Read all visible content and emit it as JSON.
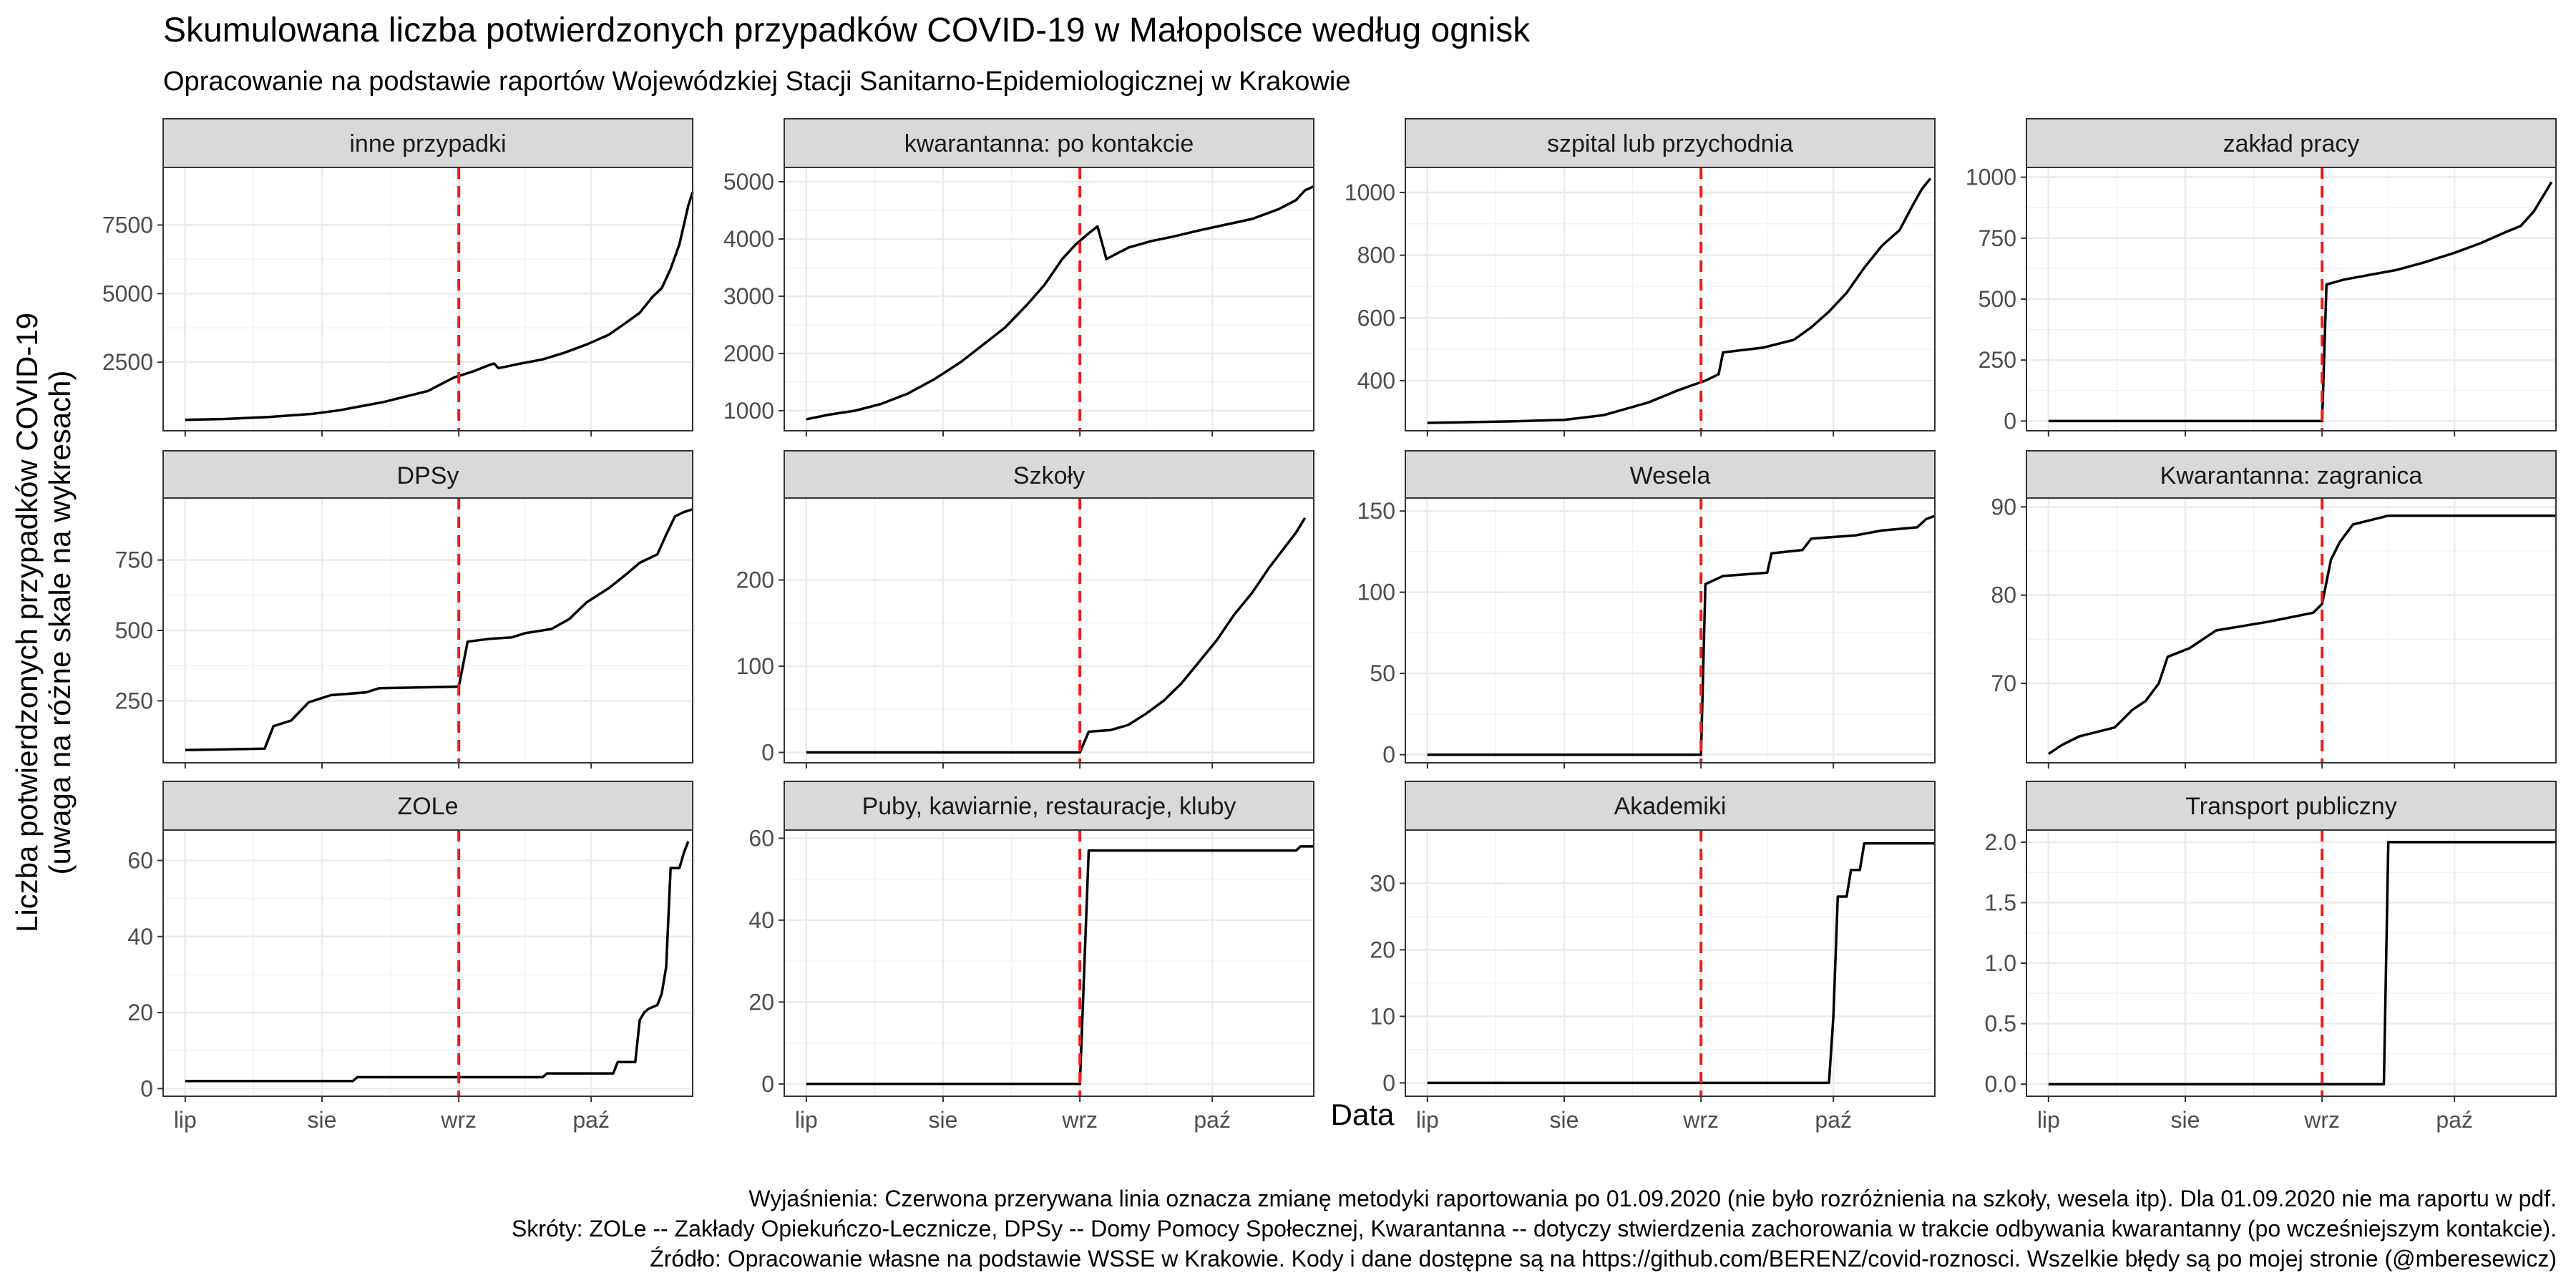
{
  "title": "Skumulowana liczba potwierdzonych przypadków COVID-19 w Małopolsce według ognisk",
  "subtitle": "Opracowanie na podstawie raportów Wojewódzkiej Stacji Sanitarno-Epidemiologicznej w Krakowie",
  "xlabel": "Data",
  "ylabel_line1": "Liczba potwierdzonych przypadków COVID-19",
  "ylabel_line2": "(uwaga na różne skale na wykresach)",
  "caption": [
    "Wyjaśnienia: Czerwona przerywana linia oznacza zmianę metodyki raportowania po 01.09.2020 (nie było rozróżnienia na szkoły, wesela itp). Dla 01.09.2020 nie ma raportu w pdf.",
    "Skróty: ZOLe -- Zakłady Opiekuńczo-Lecznicze, DPSy -- Domy Pomocy Społecznej, Kwarantanna -- dotyczy stwierdzenia zachorowania w trakcie odbywania kwarantanny (po wcześniejszym kontakcie).",
    "Źródło: Opracowanie własne na podstawie WSSE w Krakowie. Kody i dane dostępne są na https://github.com/BERENZ/covid-roznosci. Wszelkie błędy są po mojej stronie (@mberesewicz)"
  ],
  "colors": {
    "line": "#000000",
    "vline": "#ee1c1c",
    "strip": "#d9d9d9",
    "grid": "#ebebeb",
    "panel_border": "#333333"
  },
  "chart_data": {
    "type": "line",
    "facet_layout": "3x4",
    "x_type": "date",
    "xlim": [
      "2020-06-26",
      "2020-10-24"
    ],
    "x_ticks": [
      {
        "date": "2020-07-01",
        "label": "lip"
      },
      {
        "date": "2020-08-01",
        "label": "sie"
      },
      {
        "date": "2020-09-01",
        "label": "wrz"
      },
      {
        "date": "2020-10-01",
        "label": "paź"
      }
    ],
    "vline_date": "2020-09-01",
    "vline_style": "dashed",
    "grid": true,
    "legend": "none",
    "panels": [
      {
        "name": "inne przypadki",
        "ylim": [
          0,
          9600
        ],
        "yticks": [
          2500,
          5000,
          7500
        ],
        "points": [
          [
            "2020-07-01",
            400
          ],
          [
            "2020-07-10",
            430
          ],
          [
            "2020-07-20",
            500
          ],
          [
            "2020-07-30",
            620
          ],
          [
            "2020-08-05",
            750
          ],
          [
            "2020-08-10",
            900
          ],
          [
            "2020-08-15",
            1050
          ],
          [
            "2020-08-20",
            1250
          ],
          [
            "2020-08-25",
            1450
          ],
          [
            "2020-08-28",
            1700
          ],
          [
            "2020-08-31",
            1950
          ],
          [
            "2020-09-04",
            2150
          ],
          [
            "2020-09-08",
            2400
          ],
          [
            "2020-09-09",
            2450
          ],
          [
            "2020-09-10",
            2280
          ],
          [
            "2020-09-15",
            2450
          ],
          [
            "2020-09-20",
            2600
          ],
          [
            "2020-09-25",
            2850
          ],
          [
            "2020-09-30",
            3150
          ],
          [
            "2020-10-05",
            3500
          ],
          [
            "2020-10-09",
            3950
          ],
          [
            "2020-10-12",
            4300
          ],
          [
            "2020-10-15",
            4900
          ],
          [
            "2020-10-17",
            5200
          ],
          [
            "2020-10-19",
            5900
          ],
          [
            "2020-10-21",
            6800
          ],
          [
            "2020-10-22",
            7500
          ],
          [
            "2020-10-23",
            8200
          ],
          [
            "2020-10-24",
            8700
          ]
        ]
      },
      {
        "name": "kwarantanna: po kontakcie",
        "ylim": [
          650,
          5250
        ],
        "yticks": [
          1000,
          2000,
          3000,
          4000,
          5000
        ],
        "points": [
          [
            "2020-07-01",
            850
          ],
          [
            "2020-07-06",
            930
          ],
          [
            "2020-07-12",
            1000
          ],
          [
            "2020-07-18",
            1120
          ],
          [
            "2020-07-24",
            1300
          ],
          [
            "2020-07-30",
            1550
          ],
          [
            "2020-08-05",
            1850
          ],
          [
            "2020-08-10",
            2150
          ],
          [
            "2020-08-15",
            2450
          ],
          [
            "2020-08-20",
            2850
          ],
          [
            "2020-08-24",
            3200
          ],
          [
            "2020-08-28",
            3650
          ],
          [
            "2020-08-31",
            3900
          ],
          [
            "2020-09-03",
            4100
          ],
          [
            "2020-09-05",
            4220
          ],
          [
            "2020-09-07",
            3650
          ],
          [
            "2020-09-12",
            3850
          ],
          [
            "2020-09-17",
            3960
          ],
          [
            "2020-09-22",
            4040
          ],
          [
            "2020-09-28",
            4150
          ],
          [
            "2020-10-04",
            4250
          ],
          [
            "2020-10-10",
            4350
          ],
          [
            "2020-10-16",
            4520
          ],
          [
            "2020-10-20",
            4680
          ],
          [
            "2020-10-22",
            4850
          ],
          [
            "2020-10-24",
            4920
          ]
        ]
      },
      {
        "name": "szpital lub przychodnia",
        "ylim": [
          240,
          1080
        ],
        "yticks": [
          400,
          600,
          800,
          1000
        ],
        "points": [
          [
            "2020-07-01",
            265
          ],
          [
            "2020-07-20",
            270
          ],
          [
            "2020-08-01",
            275
          ],
          [
            "2020-08-10",
            290
          ],
          [
            "2020-08-20",
            330
          ],
          [
            "2020-08-27",
            370
          ],
          [
            "2020-09-02",
            400
          ],
          [
            "2020-09-05",
            420
          ],
          [
            "2020-09-06",
            490
          ],
          [
            "2020-09-15",
            505
          ],
          [
            "2020-09-22",
            530
          ],
          [
            "2020-09-26",
            570
          ],
          [
            "2020-09-30",
            620
          ],
          [
            "2020-10-04",
            680
          ],
          [
            "2020-10-08",
            760
          ],
          [
            "2020-10-12",
            830
          ],
          [
            "2020-10-16",
            880
          ],
          [
            "2020-10-19",
            960
          ],
          [
            "2020-10-21",
            1010
          ],
          [
            "2020-10-23",
            1045
          ]
        ]
      },
      {
        "name": "zakład pracy",
        "ylim": [
          -40,
          1040
        ],
        "yticks": [
          0,
          250,
          500,
          750,
          1000
        ],
        "points": [
          [
            "2020-07-01",
            0
          ],
          [
            "2020-09-01",
            0
          ],
          [
            "2020-09-02",
            560
          ],
          [
            "2020-09-06",
            580
          ],
          [
            "2020-09-12",
            600
          ],
          [
            "2020-09-18",
            620
          ],
          [
            "2020-09-24",
            650
          ],
          [
            "2020-10-01",
            690
          ],
          [
            "2020-10-07",
            730
          ],
          [
            "2020-10-12",
            770
          ],
          [
            "2020-10-16",
            800
          ],
          [
            "2020-10-19",
            860
          ],
          [
            "2020-10-21",
            920
          ],
          [
            "2020-10-23",
            980
          ]
        ]
      },
      {
        "name": "DPSy",
        "ylim": [
          30,
          970
        ],
        "yticks": [
          250,
          500,
          750
        ],
        "points": [
          [
            "2020-07-01",
            75
          ],
          [
            "2020-07-19",
            80
          ],
          [
            "2020-07-21",
            160
          ],
          [
            "2020-07-25",
            180
          ],
          [
            "2020-07-29",
            245
          ],
          [
            "2020-08-03",
            270
          ],
          [
            "2020-08-11",
            280
          ],
          [
            "2020-08-14",
            295
          ],
          [
            "2020-08-31",
            300
          ],
          [
            "2020-09-01",
            300
          ],
          [
            "2020-09-03",
            460
          ],
          [
            "2020-09-08",
            470
          ],
          [
            "2020-09-13",
            475
          ],
          [
            "2020-09-16",
            490
          ],
          [
            "2020-09-22",
            505
          ],
          [
            "2020-09-26",
            540
          ],
          [
            "2020-09-30",
            600
          ],
          [
            "2020-10-05",
            650
          ],
          [
            "2020-10-09",
            700
          ],
          [
            "2020-10-12",
            740
          ],
          [
            "2020-10-16",
            770
          ],
          [
            "2020-10-18",
            840
          ],
          [
            "2020-10-20",
            905
          ],
          [
            "2020-10-22",
            920
          ],
          [
            "2020-10-24",
            930
          ]
        ]
      },
      {
        "name": "Szkoły",
        "ylim": [
          -12,
          295
        ],
        "yticks": [
          0,
          100,
          200
        ],
        "points": [
          [
            "2020-07-01",
            0
          ],
          [
            "2020-09-01",
            0
          ],
          [
            "2020-09-03",
            24
          ],
          [
            "2020-09-08",
            26
          ],
          [
            "2020-09-12",
            32
          ],
          [
            "2020-09-16",
            45
          ],
          [
            "2020-09-20",
            60
          ],
          [
            "2020-09-24",
            80
          ],
          [
            "2020-09-28",
            105
          ],
          [
            "2020-10-02",
            130
          ],
          [
            "2020-10-06",
            160
          ],
          [
            "2020-10-10",
            185
          ],
          [
            "2020-10-14",
            215
          ],
          [
            "2020-10-17",
            235
          ],
          [
            "2020-10-20",
            255
          ],
          [
            "2020-10-22",
            272
          ]
        ]
      },
      {
        "name": "Wesela",
        "ylim": [
          -5,
          158
        ],
        "yticks": [
          0,
          50,
          100,
          150
        ],
        "points": [
          [
            "2020-07-01",
            0
          ],
          [
            "2020-09-01",
            0
          ],
          [
            "2020-09-02",
            105
          ],
          [
            "2020-09-06",
            110
          ],
          [
            "2020-09-16",
            112
          ],
          [
            "2020-09-17",
            124
          ],
          [
            "2020-09-24",
            126
          ],
          [
            "2020-09-26",
            133
          ],
          [
            "2020-10-06",
            135
          ],
          [
            "2020-10-12",
            138
          ],
          [
            "2020-10-20",
            140
          ],
          [
            "2020-10-22",
            145
          ],
          [
            "2020-10-24",
            147
          ]
        ]
      },
      {
        "name": "Kwarantanna: zagranica",
        "ylim": [
          61,
          91
        ],
        "yticks": [
          70,
          80,
          90
        ],
        "points": [
          [
            "2020-07-01",
            62
          ],
          [
            "2020-07-04",
            63
          ],
          [
            "2020-07-08",
            64
          ],
          [
            "2020-07-16",
            65
          ],
          [
            "2020-07-18",
            66
          ],
          [
            "2020-07-20",
            67
          ],
          [
            "2020-07-23",
            68
          ],
          [
            "2020-07-26",
            70
          ],
          [
            "2020-07-28",
            73
          ],
          [
            "2020-08-02",
            74
          ],
          [
            "2020-08-05",
            75
          ],
          [
            "2020-08-08",
            76
          ],
          [
            "2020-08-20",
            77
          ],
          [
            "2020-08-30",
            78
          ],
          [
            "2020-09-01",
            79
          ],
          [
            "2020-09-03",
            84
          ],
          [
            "2020-09-05",
            86
          ],
          [
            "2020-09-08",
            88
          ],
          [
            "2020-09-16",
            89
          ],
          [
            "2020-10-24",
            89
          ]
        ]
      },
      {
        "name": "ZOLe",
        "ylim": [
          -2,
          68
        ],
        "yticks": [
          0,
          20,
          40,
          60
        ],
        "points": [
          [
            "2020-07-01",
            2
          ],
          [
            "2020-08-08",
            2
          ],
          [
            "2020-08-09",
            3
          ],
          [
            "2020-09-20",
            3
          ],
          [
            "2020-09-21",
            4
          ],
          [
            "2020-10-06",
            4
          ],
          [
            "2020-10-07",
            7
          ],
          [
            "2020-10-11",
            7
          ],
          [
            "2020-10-12",
            18
          ],
          [
            "2020-10-13",
            20
          ],
          [
            "2020-10-14",
            21
          ],
          [
            "2020-10-16",
            22
          ],
          [
            "2020-10-17",
            25
          ],
          [
            "2020-10-18",
            32
          ],
          [
            "2020-10-19",
            58
          ],
          [
            "2020-10-21",
            58
          ],
          [
            "2020-10-22",
            62
          ],
          [
            "2020-10-23",
            65
          ]
        ]
      },
      {
        "name": "Puby, kawiarnie, restauracje, kluby",
        "ylim": [
          -3,
          62
        ],
        "yticks": [
          0,
          20,
          40,
          60
        ],
        "points": [
          [
            "2020-07-01",
            0
          ],
          [
            "2020-09-01",
            0
          ],
          [
            "2020-09-03",
            57
          ],
          [
            "2020-10-20",
            57
          ],
          [
            "2020-10-21",
            58
          ],
          [
            "2020-10-24",
            58
          ]
        ]
      },
      {
        "name": "Akademiki",
        "ylim": [
          -2,
          38
        ],
        "yticks": [
          0,
          10,
          20,
          30
        ],
        "points": [
          [
            "2020-07-01",
            0
          ],
          [
            "2020-09-30",
            0
          ],
          [
            "2020-10-01",
            10
          ],
          [
            "2020-10-02",
            28
          ],
          [
            "2020-10-04",
            28
          ],
          [
            "2020-10-05",
            32
          ],
          [
            "2020-10-07",
            32
          ],
          [
            "2020-10-08",
            36
          ],
          [
            "2020-10-24",
            36
          ]
        ]
      },
      {
        "name": "Transport publiczny",
        "ylim": [
          -0.1,
          2.1
        ],
        "yticks": [
          0.0,
          0.5,
          1.0,
          1.5,
          2.0
        ],
        "ytick_labels": [
          "0.0",
          "0.5",
          "1.0",
          "1.5",
          "2.0"
        ],
        "points": [
          [
            "2020-07-01",
            0
          ],
          [
            "2020-09-15",
            0
          ],
          [
            "2020-09-16",
            2
          ],
          [
            "2020-10-24",
            2
          ]
        ]
      }
    ]
  }
}
